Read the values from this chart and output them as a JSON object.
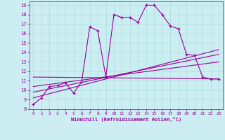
{
  "xlabel": "Windchill (Refroidissement éolien,°C)",
  "background_color": "#cceef2",
  "grid_color": "#aadddd",
  "line_color": "#990099",
  "xlim": [
    -0.5,
    23.5
  ],
  "ylim": [
    8,
    19.4
  ],
  "yticks": [
    8,
    9,
    10,
    11,
    12,
    13,
    14,
    15,
    16,
    17,
    18,
    19
  ],
  "xticks": [
    0,
    1,
    2,
    3,
    4,
    5,
    6,
    7,
    8,
    9,
    10,
    11,
    12,
    13,
    14,
    15,
    16,
    17,
    18,
    19,
    20,
    21,
    22,
    23
  ],
  "main_x": [
    0,
    1,
    2,
    3,
    4,
    5,
    6,
    7,
    8,
    9,
    10,
    11,
    12,
    13,
    14,
    15,
    16,
    17,
    18,
    19,
    20,
    21,
    22,
    23
  ],
  "main_y": [
    8.5,
    9.2,
    10.4,
    10.5,
    10.8,
    9.7,
    10.9,
    16.7,
    16.3,
    11.4,
    18.0,
    17.7,
    17.7,
    17.2,
    19.0,
    19.0,
    18.0,
    16.8,
    16.5,
    13.8,
    13.7,
    11.4,
    11.2,
    11.2
  ],
  "line1_x": [
    0,
    23
  ],
  "line1_y": [
    11.4,
    11.2
  ],
  "line2_x": [
    0,
    23
  ],
  "line2_y": [
    10.4,
    13.0
  ],
  "line3_x": [
    0,
    23
  ],
  "line3_y": [
    9.8,
    13.8
  ],
  "line4_x": [
    0,
    23
  ],
  "line4_y": [
    9.2,
    14.3
  ]
}
